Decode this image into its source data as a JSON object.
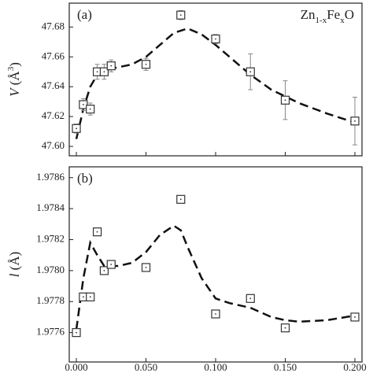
{
  "chart_data": [
    {
      "type": "scatter",
      "panel_label": "(a)",
      "annotation": [
        "Zn",
        "1-x",
        "Fe",
        "x",
        "O"
      ],
      "y_label": [
        "V",
        " (Å",
        "3",
        ")"
      ],
      "x": [
        0.0,
        0.005,
        0.01,
        0.015,
        0.02,
        0.025,
        0.05,
        0.075,
        0.1,
        0.125,
        0.15,
        0.2
      ],
      "series": [
        {
          "color": "#333333",
          "values": [
            47.612,
            47.628,
            47.625,
            47.65,
            47.65,
            47.654,
            47.655,
            47.688,
            47.672,
            47.65,
            47.631,
            47.617
          ],
          "errors": [
            0.003,
            0.004,
            0.004,
            0.005,
            0.005,
            0.004,
            0.004,
            0.003,
            0.003,
            0.012,
            0.013,
            0.016
          ]
        }
      ],
      "fit": {
        "x": [
          0,
          0.005,
          0.01,
          0.015,
          0.02,
          0.03,
          0.04,
          0.05,
          0.06,
          0.07,
          0.08,
          0.09,
          0.1,
          0.11,
          0.125,
          0.14,
          0.16,
          0.18,
          0.2
        ],
        "values": [
          47.605,
          47.625,
          47.64,
          47.648,
          47.651,
          47.653,
          47.655,
          47.66,
          47.668,
          47.676,
          47.679,
          47.675,
          47.668,
          47.66,
          47.648,
          47.638,
          47.629,
          47.622,
          47.616
        ]
      },
      "xlim": [
        -0.0051,
        0.2051
      ],
      "ylim": [
        47.5937,
        47.696
      ],
      "yticks": [
        {
          "value": 47.6,
          "label": "47.60"
        },
        {
          "value": 47.62,
          "label": "47.62"
        },
        {
          "value": 47.64,
          "label": "47.64"
        },
        {
          "value": 47.66,
          "label": "47.66"
        },
        {
          "value": 47.68,
          "label": "47.68"
        }
      ]
    },
    {
      "type": "scatter",
      "panel_label": "(b)",
      "y_label": [
        "l",
        " (Å)"
      ],
      "x": [
        0.0,
        0.005,
        0.01,
        0.015,
        0.02,
        0.025,
        0.05,
        0.075,
        0.1,
        0.125,
        0.15,
        0.2
      ],
      "series": [
        {
          "color": "#333333",
          "values": [
            1.9776,
            1.97783,
            1.97783,
            1.97825,
            1.978,
            1.97804,
            1.97802,
            1.97846,
            1.97772,
            1.97782,
            1.97763,
            1.9777
          ]
        }
      ],
      "fit": {
        "x": [
          0,
          0.005,
          0.01,
          0.015,
          0.02,
          0.03,
          0.04,
          0.05,
          0.06,
          0.07,
          0.075,
          0.08,
          0.09,
          0.1,
          0.11,
          0.125,
          0.14,
          0.15,
          0.16,
          0.18,
          0.2
        ],
        "values": [
          1.97762,
          1.97795,
          1.97818,
          1.9781,
          1.97803,
          1.97803,
          1.97805,
          1.97812,
          1.97823,
          1.97829,
          1.97826,
          1.97815,
          1.97795,
          1.97782,
          1.97779,
          1.97776,
          1.9777,
          1.97768,
          1.97767,
          1.97768,
          1.97771
        ]
      },
      "xlim": [
        -0.0051,
        0.2051
      ],
      "ylim": [
        1.97741,
        1.97867
      ],
      "yticks": [
        1.9776,
        1.9778,
        {
          "value": 1.978,
          "label": "1.9780"
        },
        1.9782,
        1.9784,
        1.9786
      ],
      "xticks": [
        {
          "value": 0,
          "label": "0.000"
        },
        {
          "value": 0.05,
          "label": "0.050"
        },
        {
          "value": 0.1,
          "label": "0.100"
        },
        {
          "value": 0.15,
          "label": "0.150"
        },
        {
          "value": 0.2,
          "label": "0.200"
        }
      ]
    }
  ]
}
